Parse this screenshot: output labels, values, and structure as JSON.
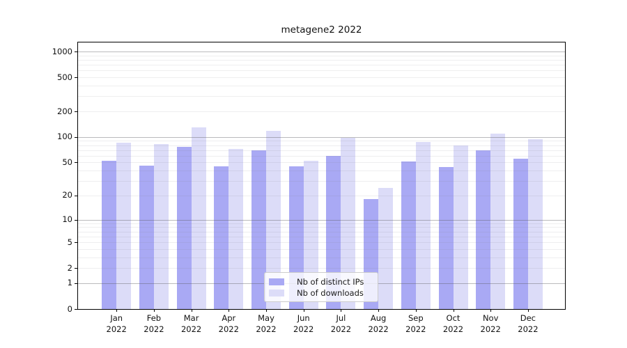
{
  "title": "metagene2 2022",
  "chart_data": {
    "type": "bar",
    "title": "metagene2 2022",
    "categories": [
      "Jan",
      "Feb",
      "Mar",
      "Apr",
      "May",
      "Jun",
      "Jul",
      "Aug",
      "Sep",
      "Oct",
      "Nov",
      "Dec"
    ],
    "year": "2022",
    "series": [
      {
        "name": "Nb of distinct IPs",
        "color": "#a9a9f4",
        "values": [
          52,
          46,
          76,
          45,
          69,
          45,
          60,
          18,
          51,
          44,
          69,
          56
        ]
      },
      {
        "name": "Nb of downloads",
        "color": "#dcdcf8",
        "values": [
          85,
          82,
          130,
          72,
          119,
          52,
          97,
          25,
          88,
          80,
          110,
          94
        ]
      }
    ],
    "yscale": "log1p",
    "yticks": [
      0,
      1,
      2,
      5,
      10,
      20,
      50,
      100,
      200,
      500,
      1000
    ],
    "ylim": [
      0,
      1300
    ],
    "xlabel": "",
    "ylabel": "",
    "grid": true,
    "legend_position": "lower center",
    "axis_color": "#000000",
    "major_grid_color": "#5a5a5f",
    "minor_grid_color": "#78788230"
  }
}
